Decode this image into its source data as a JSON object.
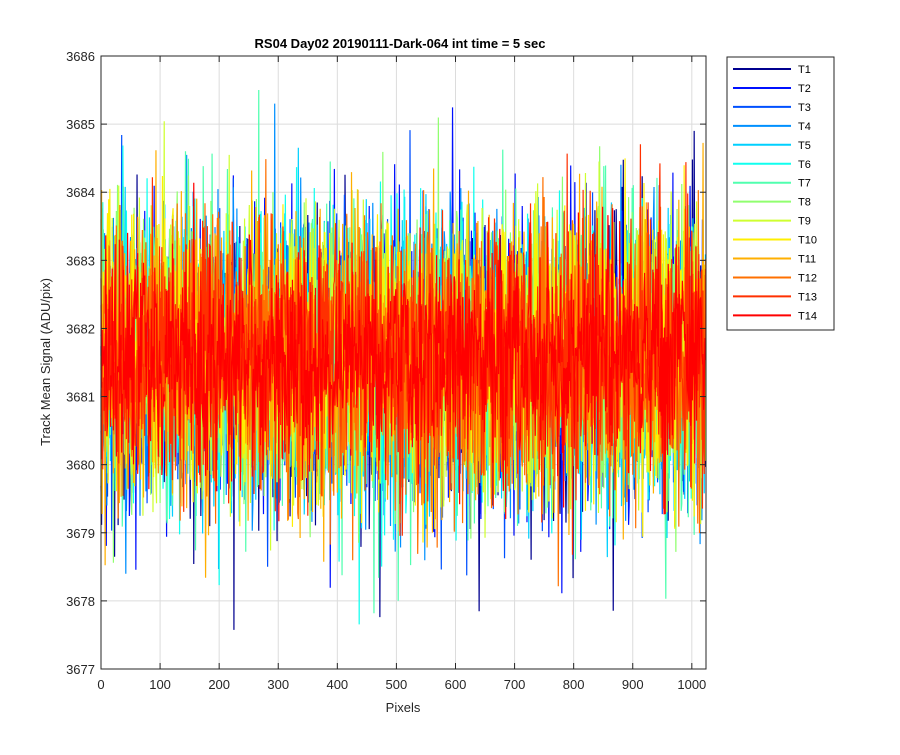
{
  "chart_data": {
    "type": "line",
    "title": "RS04 Day02 20190111-Dark-064 int time = 5 sec",
    "xlabel": "Pixels",
    "ylabel": "Track Mean Signal (ADU/pix)",
    "xlim": [
      0,
      1024
    ],
    "ylim": [
      3677,
      3686
    ],
    "xticks": [
      0,
      100,
      200,
      300,
      400,
      500,
      600,
      700,
      800,
      900,
      1000
    ],
    "yticks": [
      3677,
      3678,
      3679,
      3680,
      3681,
      3682,
      3683,
      3684,
      3685,
      3686
    ],
    "grid": true,
    "legend_position": "outside-top-right",
    "num_points": 1024,
    "series": [
      {
        "name": "T1",
        "color": "#00008f",
        "mean": 3681.5,
        "spread": 1.2
      },
      {
        "name": "T2",
        "color": "#0010ff",
        "mean": 3681.5,
        "spread": 1.2
      },
      {
        "name": "T3",
        "color": "#0050ff",
        "mean": 3681.5,
        "spread": 1.2
      },
      {
        "name": "T4",
        "color": "#0090ff",
        "mean": 3681.5,
        "spread": 1.2
      },
      {
        "name": "T5",
        "color": "#00d0ff",
        "mean": 3681.5,
        "spread": 1.2
      },
      {
        "name": "T6",
        "color": "#10ffef",
        "mean": 3681.5,
        "spread": 1.2
      },
      {
        "name": "T7",
        "color": "#50ffaf",
        "mean": 3681.5,
        "spread": 1.2
      },
      {
        "name": "T8",
        "color": "#90ff6f",
        "mean": 3681.6,
        "spread": 1.2
      },
      {
        "name": "T9",
        "color": "#cfff30",
        "mean": 3681.6,
        "spread": 1.2
      },
      {
        "name": "T10",
        "color": "#ffef00",
        "mean": 3681.6,
        "spread": 1.2
      },
      {
        "name": "T11",
        "color": "#ffaf00",
        "mean": 3681.6,
        "spread": 1.2
      },
      {
        "name": "T12",
        "color": "#ff7000",
        "mean": 3681.6,
        "spread": 1.2
      },
      {
        "name": "T13",
        "color": "#ff3000",
        "mean": 3681.6,
        "spread": 1.1
      },
      {
        "name": "T14",
        "color": "#ff0000",
        "mean": 3681.6,
        "spread": 1.0
      }
    ]
  }
}
